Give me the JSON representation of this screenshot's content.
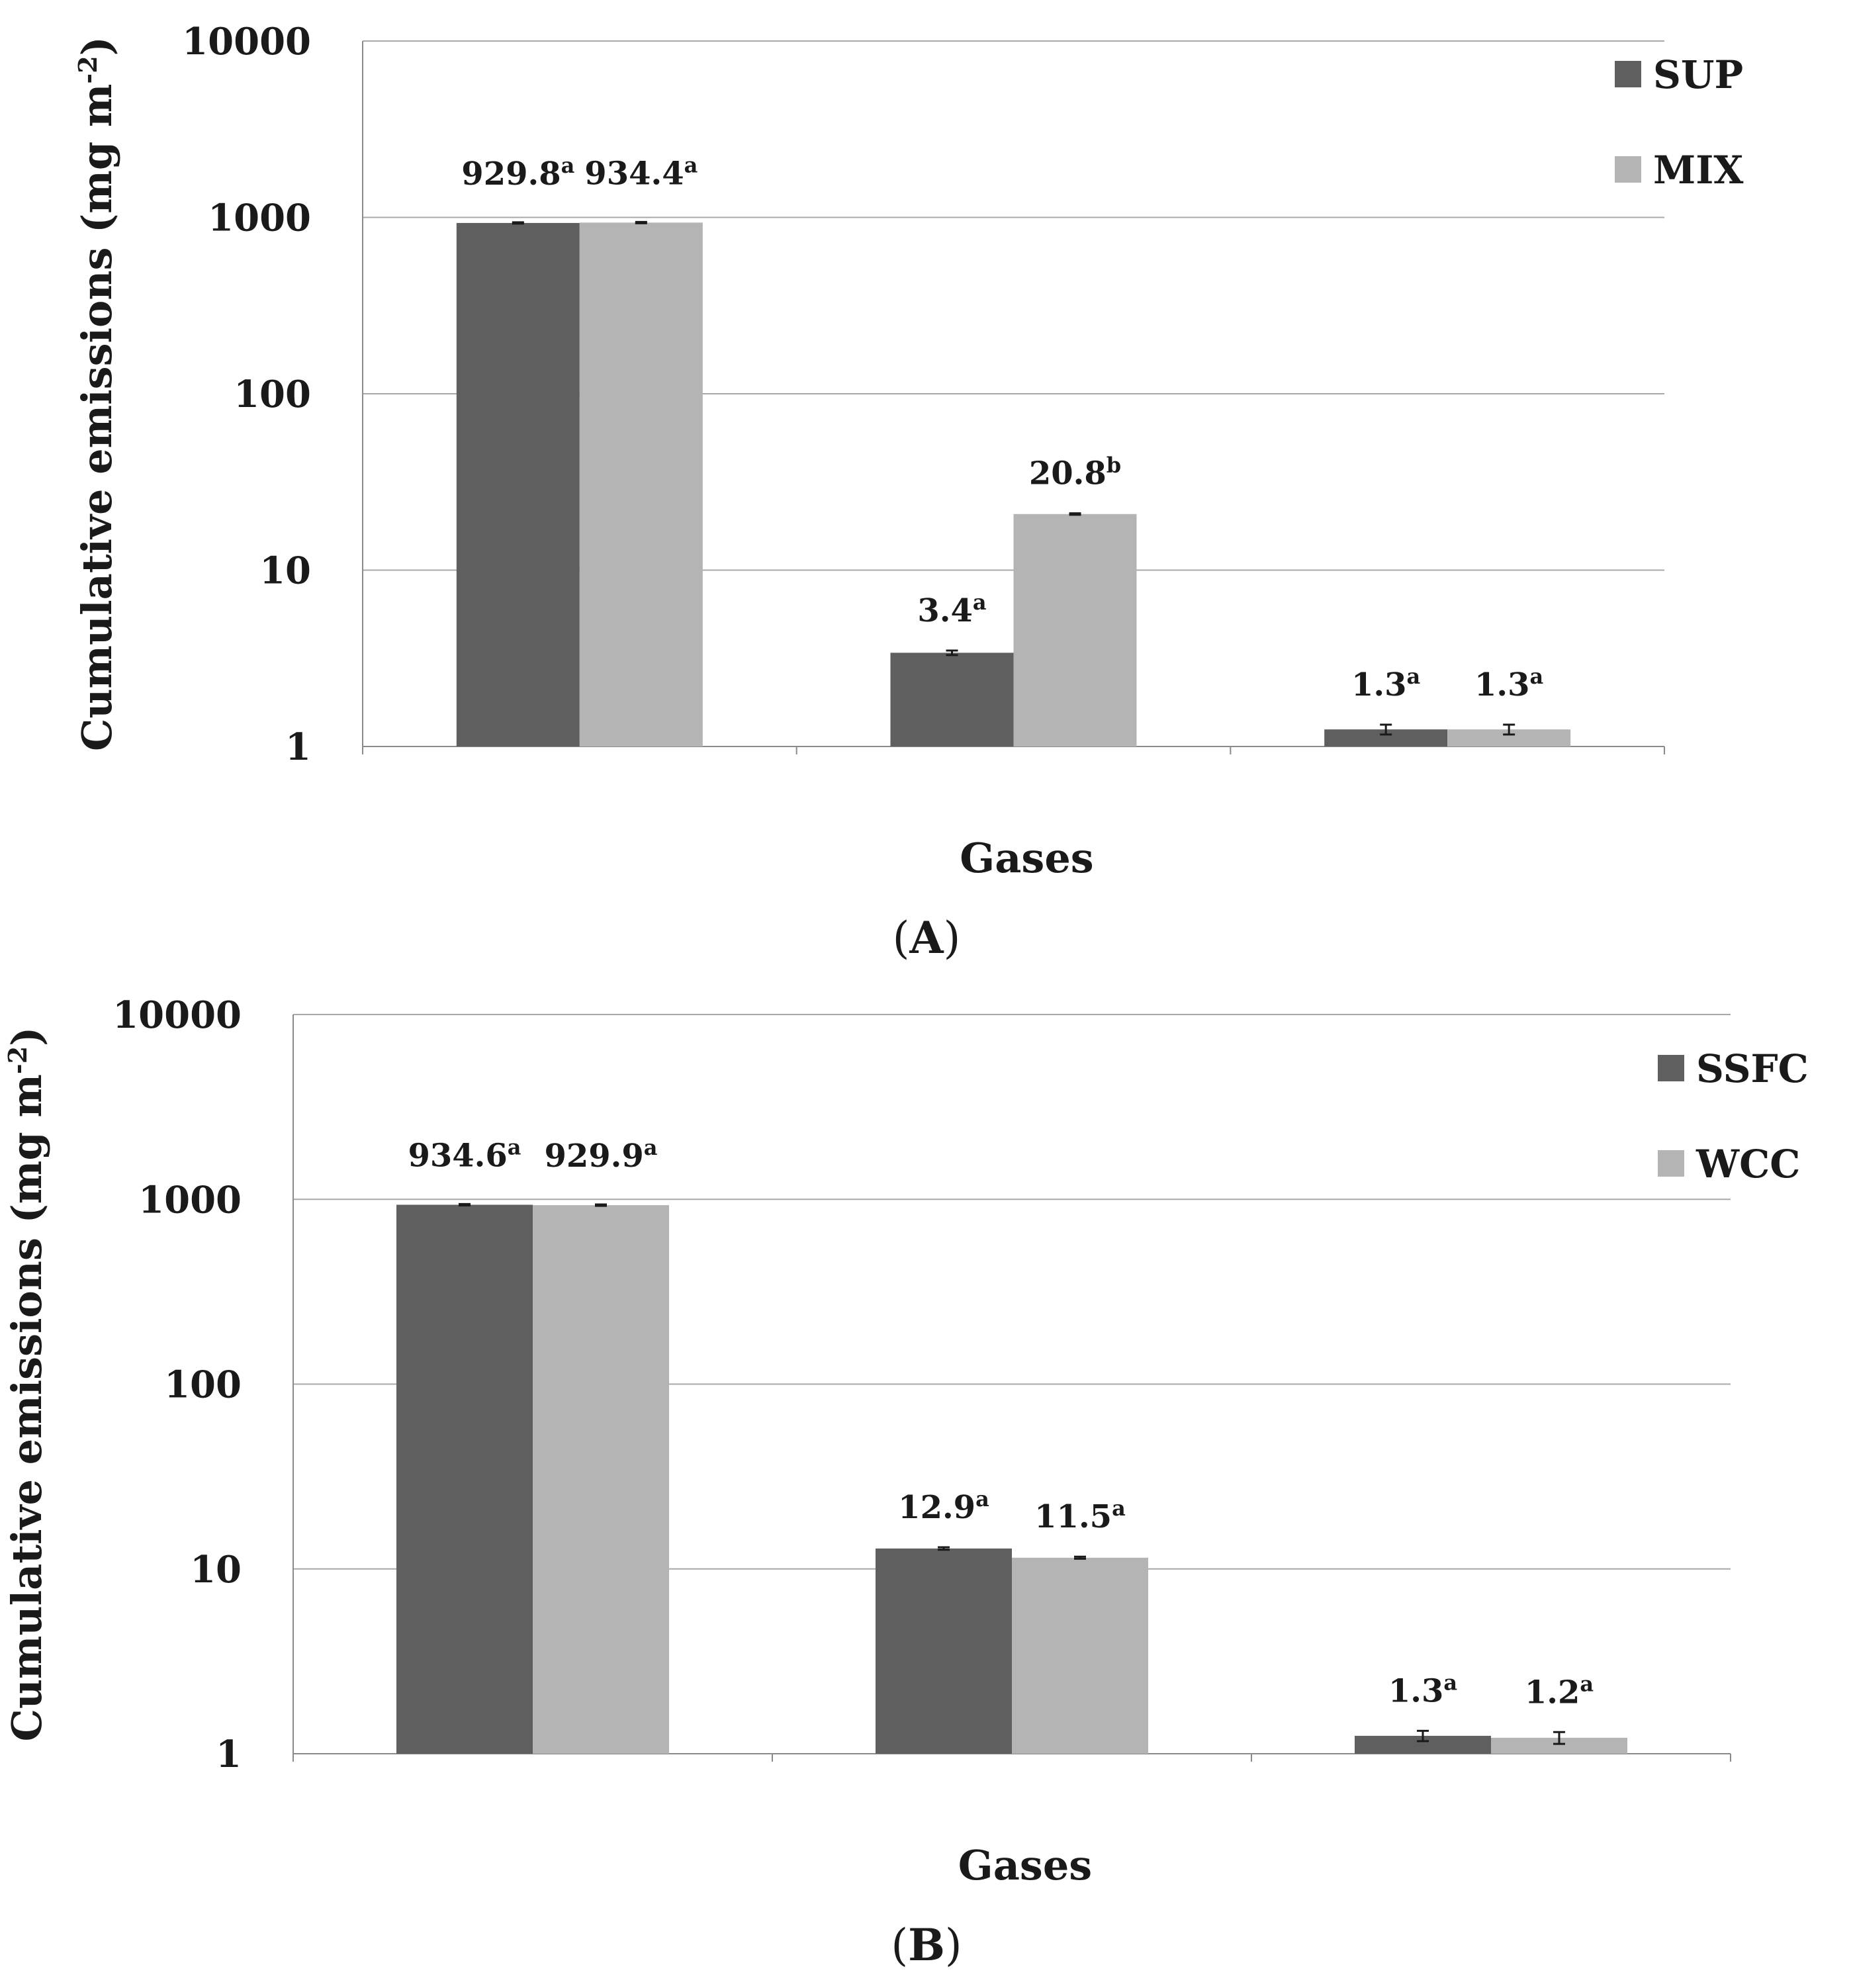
{
  "chart_data": [
    {
      "type": "bar",
      "panel": "A",
      "panel_label": "(A)",
      "scale": "log",
      "categories": [
        "",
        "",
        ""
      ],
      "series": [
        {
          "name": "SUP",
          "color": "#5f5f5f",
          "values": [
            929.8,
            3.4,
            1.25
          ],
          "errors": [
            8,
            0.1,
            0.08
          ]
        },
        {
          "name": "MIX",
          "color": "#b4b4b4",
          "values": [
            934.4,
            20.8,
            1.25
          ],
          "errors": [
            8,
            0.2,
            0.08
          ]
        }
      ],
      "data_labels": [
        [
          "929.8",
          "3.4",
          "1.3"
        ],
        [
          "934.4",
          "20.8",
          "1.3"
        ]
      ],
      "letters": [
        [
          "a",
          "a",
          "a"
        ],
        [
          "a",
          "b",
          "a"
        ]
      ],
      "xlabel": "Gases",
      "ylabel": "Cumulative emissions (mg m",
      "ylabel_sup": "-2",
      "ylabel_end": ")",
      "ylim": [
        1,
        10000
      ],
      "yticks": [
        "1",
        "10",
        "100",
        "1000",
        "10000"
      ],
      "grid": true,
      "legend": "top-right"
    },
    {
      "type": "bar",
      "panel": "B",
      "panel_label": "(B)",
      "scale": "log",
      "categories": [
        "",
        "",
        ""
      ],
      "series": [
        {
          "name": "SSFC",
          "color": "#5f5f5f",
          "values": [
            934.6,
            12.9,
            1.25
          ],
          "errors": [
            8,
            0.2,
            0.08
          ]
        },
        {
          "name": "WCC",
          "color": "#b4b4b4",
          "values": [
            929.9,
            11.5,
            1.22
          ],
          "errors": [
            8,
            0.15,
            0.09
          ]
        }
      ],
      "data_labels": [
        [
          "934.6",
          "12.9",
          "1.3"
        ],
        [
          "929.9",
          "11.5",
          "1.2"
        ]
      ],
      "letters": [
        [
          "a",
          "a",
          "a"
        ],
        [
          "a",
          "a",
          "a"
        ]
      ],
      "xlabel": "Gases",
      "ylabel": "Cumulative emissions (mg m",
      "ylabel_sup": "-2",
      "ylabel_end": ")",
      "ylim": [
        1,
        10000
      ],
      "yticks": [
        "1",
        "10",
        "100",
        "1000",
        "10000"
      ],
      "grid": true,
      "legend": "top-right"
    }
  ]
}
